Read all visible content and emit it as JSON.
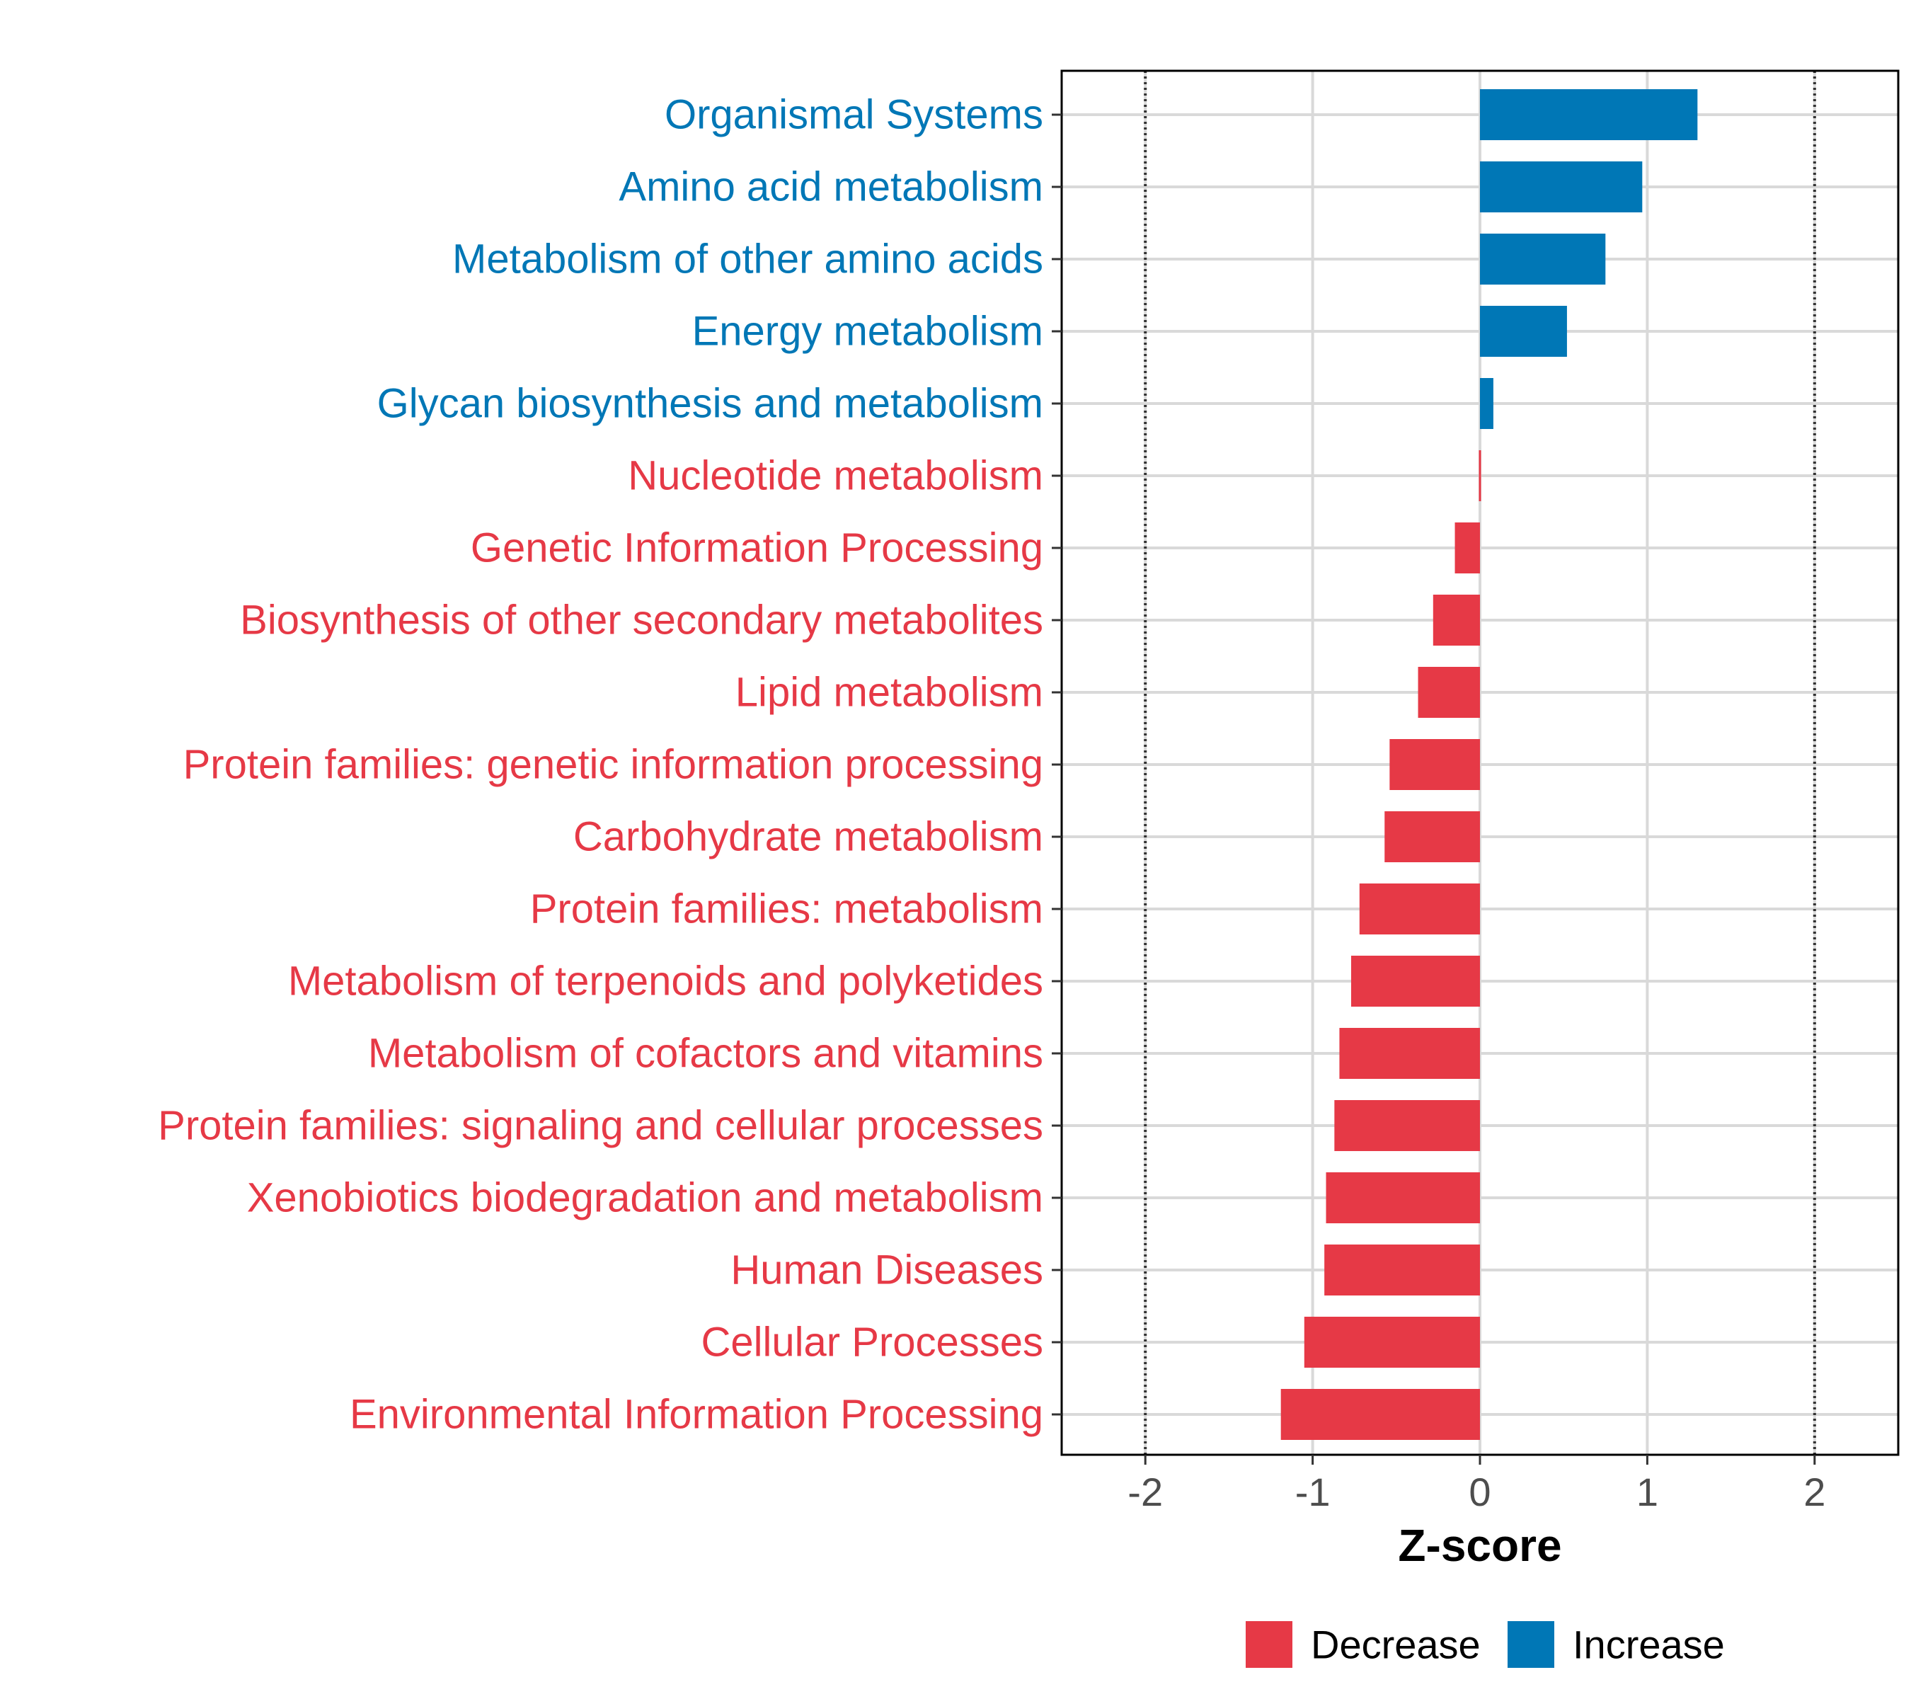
{
  "chart_data": {
    "type": "bar",
    "orientation": "horizontal",
    "title": "",
    "xlabel": "Z-score",
    "ylabel": "",
    "xlim": [
      -2.5,
      2.5
    ],
    "xticks": [
      -2,
      -1,
      0,
      1,
      2
    ],
    "tick_labels": [
      "-2",
      "-1",
      "0",
      "1",
      "2"
    ],
    "reference_lines": [
      -2,
      2
    ],
    "grid": true,
    "legend_position": "bottom",
    "colors": {
      "Decrease": "#e63946",
      "Increase": "#0077b6"
    },
    "legend": [
      {
        "name": "Decrease",
        "color": "#e63946"
      },
      {
        "name": "Increase",
        "color": "#0077b6"
      }
    ],
    "categories": [
      "Organismal Systems",
      "Amino acid metabolism",
      "Metabolism of other amino acids",
      "Energy metabolism",
      "Glycan biosynthesis and metabolism",
      "Nucleotide metabolism",
      "Genetic Information Processing",
      "Biosynthesis of other secondary metabolites",
      "Lipid metabolism",
      "Protein families: genetic information processing",
      "Carbohydrate metabolism",
      "Protein families: metabolism",
      "Metabolism of terpenoids and polyketides",
      "Metabolism of cofactors and vitamins",
      "Protein families: signaling and cellular processes",
      "Xenobiotics biodegradation and metabolism",
      "Human Diseases",
      "Cellular Processes",
      "Environmental Information Processing"
    ],
    "values": [
      1.3,
      0.97,
      0.75,
      0.52,
      0.08,
      -0.01,
      -0.15,
      -0.28,
      -0.37,
      -0.54,
      -0.57,
      -0.72,
      -0.77,
      -0.84,
      -0.87,
      -0.92,
      -0.93,
      -1.05,
      -1.19
    ],
    "direction": [
      "Increase",
      "Increase",
      "Increase",
      "Increase",
      "Increase",
      "Decrease",
      "Decrease",
      "Decrease",
      "Decrease",
      "Decrease",
      "Decrease",
      "Decrease",
      "Decrease",
      "Decrease",
      "Decrease",
      "Decrease",
      "Decrease",
      "Decrease",
      "Decrease"
    ]
  }
}
